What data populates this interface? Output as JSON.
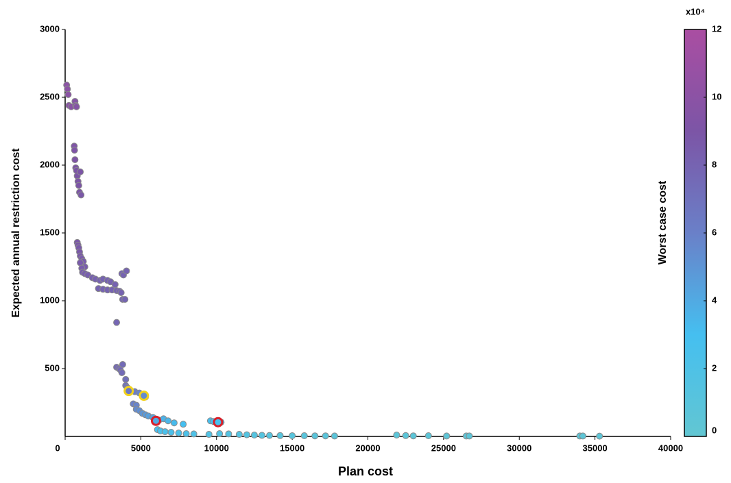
{
  "chart_data": {
    "type": "scatter",
    "xlabel": "Plan cost",
    "ylabel": "Expected annual restriction cost",
    "xlim": [
      0,
      40000
    ],
    "ylim": [
      0,
      3000
    ],
    "xticks": [
      0,
      5000,
      10000,
      15000,
      20000,
      25000,
      30000,
      35000,
      40000
    ],
    "yticks": [
      500,
      1000,
      1500,
      2000,
      2500,
      3000
    ],
    "colorbar": {
      "label": "Worst case cost",
      "multiplier": "x10⁴",
      "clim": [
        0,
        12
      ],
      "ticks": [
        0,
        2,
        4,
        6,
        8,
        10,
        12
      ],
      "colormap": [
        [
          0,
          "#62c6d2"
        ],
        [
          3,
          "#45bff0"
        ],
        [
          6,
          "#6a80c8"
        ],
        [
          9,
          "#7c55a6"
        ],
        [
          12,
          "#aa4ea2"
        ]
      ]
    },
    "marker_edge": "#8a8a8a",
    "points": {
      "x": [
        100,
        150,
        200,
        250,
        400,
        650,
        700,
        750,
        600,
        620,
        650,
        700,
        750,
        800,
        850,
        900,
        1000,
        950,
        1050,
        800,
        850,
        900,
        950,
        1000,
        1100,
        1200,
        1300,
        1000,
        1100,
        1150,
        1300,
        1500,
        1800,
        2000,
        2300,
        2500,
        2800,
        3000,
        3300,
        2200,
        2500,
        2800,
        3100,
        3400,
        3600,
        3700,
        3750,
        3850,
        4050,
        3800,
        3950,
        3400,
        3400,
        3550,
        3650,
        3800,
        3750,
        4000,
        4000,
        4100,
        4300,
        4600,
        4900,
        5200,
        5300,
        4500,
        4700,
        4700,
        4900,
        5100,
        5300,
        5500,
        5800,
        6000,
        6200,
        6500,
        6800,
        7200,
        7800,
        6100,
        6300,
        6600,
        7000,
        7500,
        8000,
        8500,
        9600,
        9800,
        10300,
        9500,
        10200,
        10800,
        11500,
        12000,
        12500,
        13000,
        13500,
        14200,
        15000,
        15800,
        16500,
        17200,
        17800,
        21900,
        22500,
        23000,
        24000,
        25200,
        26500,
        26700,
        34000,
        34200,
        35300
      ],
      "y": [
        2590,
        2560,
        2520,
        2440,
        2430,
        2470,
        2440,
        2430,
        2140,
        2110,
        2040,
        1980,
        1960,
        1920,
        1880,
        1850,
        1950,
        1800,
        1780,
        1430,
        1410,
        1390,
        1360,
        1330,
        1310,
        1290,
        1250,
        1280,
        1240,
        1210,
        1200,
        1190,
        1170,
        1160,
        1150,
        1160,
        1150,
        1140,
        1120,
        1090,
        1085,
        1080,
        1080,
        1075,
        1070,
        1060,
        1200,
        1190,
        1220,
        1010,
        1010,
        840,
        510,
        500,
        490,
        530,
        470,
        420,
        375,
        360,
        340,
        330,
        320,
        300,
        290,
        240,
        230,
        200,
        190,
        170,
        160,
        150,
        140,
        125,
        120,
        130,
        115,
        100,
        90,
        50,
        40,
        35,
        30,
        25,
        20,
        18,
        115,
        110,
        105,
        15,
        20,
        18,
        15,
        12,
        10,
        8,
        7,
        6,
        5,
        5,
        4,
        4,
        3,
        10,
        6,
        4,
        5,
        3,
        3,
        3,
        3,
        3,
        2
      ],
      "c": [
        10,
        10,
        10,
        9.8,
        9.8,
        9.5,
        9.5,
        9.5,
        9.2,
        9.2,
        9.2,
        9,
        9,
        9,
        9,
        9,
        9,
        9,
        8.8,
        8.8,
        8.8,
        8.7,
        8.7,
        8.7,
        8.6,
        8.5,
        8.5,
        8.6,
        8.5,
        8.4,
        8.4,
        8.3,
        8.2,
        8.1,
        8.1,
        8,
        8,
        8,
        8,
        8,
        8,
        8,
        8,
        8,
        8,
        8,
        8,
        8,
        8,
        7.9,
        7.9,
        7.8,
        7.6,
        7.6,
        7.6,
        7.5,
        7.5,
        7.2,
        7,
        6.9,
        6.5,
        6.2,
        5.8,
        5.5,
        5.4,
        6,
        5.8,
        5.5,
        5.3,
        5,
        4.8,
        4.5,
        4.2,
        4,
        3.8,
        3.6,
        3.4,
        3.2,
        3,
        2.8,
        2.6,
        2.5,
        2.4,
        2.3,
        2.2,
        2,
        2.8,
        2.8,
        2.6,
        1.8,
        1.7,
        1.6,
        1.5,
        1.4,
        1.3,
        1.2,
        1.1,
        1,
        1,
        0.9,
        0.8,
        0.8,
        0.7,
        0.6,
        0.6,
        0.6,
        0.5,
        0.5,
        0.5,
        0.5,
        0.4,
        0.4,
        0.4
      ]
    },
    "highlights": {
      "x": [
        4200,
        5200,
        6000,
        10100
      ],
      "y": [
        335,
        300,
        115,
        105
      ],
      "c": [
        6.5,
        5.5,
        4,
        2.7
      ],
      "edge": [
        "#f2d21a",
        "#f2d21a",
        "#d8202a",
        "#d8202a"
      ]
    }
  }
}
